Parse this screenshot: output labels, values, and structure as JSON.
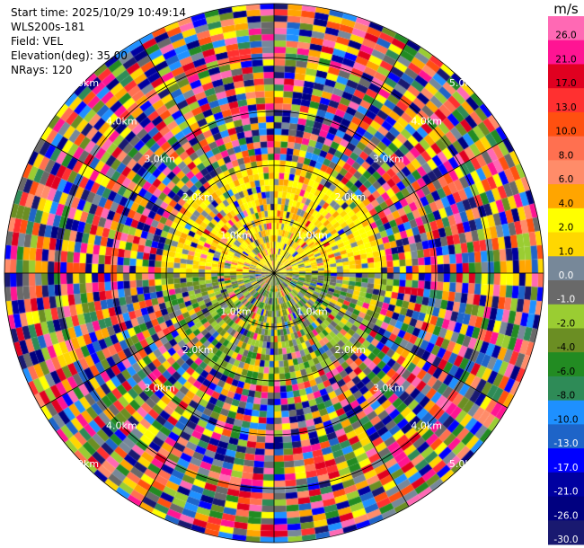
{
  "header": {
    "start_time": "Start time: 2025/10/29 10:49:14",
    "instrument": "WLS200s-181",
    "field": "Field: VEL",
    "elevation": "Elevation(deg): 35.00",
    "nrays": "NRays: 120"
  },
  "chart_data": {
    "type": "ppi",
    "field": "VEL",
    "n_rays": 120,
    "elevation_deg": 35.0,
    "range_ring_labels": [
      "1.0km",
      "2.0km",
      "3.0km",
      "4.0km",
      "5.0km"
    ],
    "range_rings_km": [
      1,
      2,
      3,
      4,
      5
    ],
    "colorbar": {
      "unit_label": "m/s",
      "ticks": [
        "26.0",
        "21.0",
        "17.0",
        "13.0",
        "10.0",
        "8.0",
        "6.0",
        "4.0",
        "2.0",
        "1.0",
        "0.0",
        "-1.0",
        "-2.0",
        "-4.0",
        "-6.0",
        "-8.0",
        "-10.0",
        "-13.0",
        "-17.0",
        "-21.0",
        "-26.0",
        "-30.0"
      ],
      "colors": [
        "#ff69b4",
        "#ff1493",
        "#e00020",
        "#ff3030",
        "#ff5010",
        "#ff7050",
        "#ff8c69",
        "#ffa500",
        "#ffff00",
        "#ffd700",
        "#778899",
        "#696969",
        "#9acd32",
        "#6b8e23",
        "#228b22",
        "#2e8b57",
        "#1e90ff",
        "#1e64c8",
        "#0000ff",
        "#0000a0",
        "#000080",
        "#191970"
      ]
    }
  }
}
